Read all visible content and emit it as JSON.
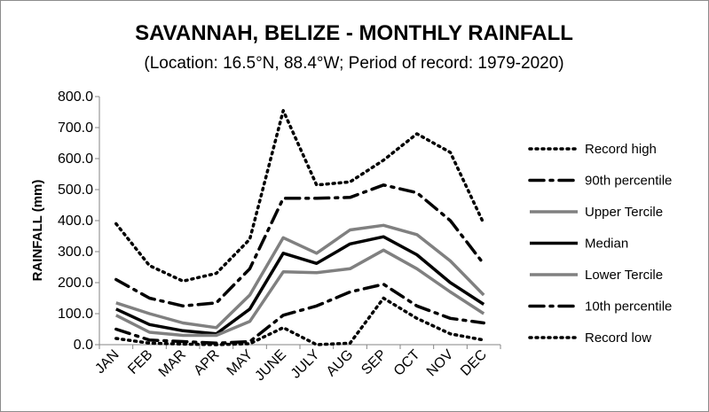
{
  "chart_data": {
    "type": "line",
    "title": "SAVANNAH, BELIZE - MONTHLY RAINFALL",
    "subtitle": "(Location: 16.5°N, 88.4°W; Period of record: 1979-2020)",
    "xlabel": "",
    "ylabel": "RAINFALL (mm)",
    "ylim": [
      0,
      800
    ],
    "yticks": [
      0,
      100,
      200,
      300,
      400,
      500,
      600,
      700,
      800
    ],
    "ytick_labels": [
      "0.0",
      "100.0",
      "200.0",
      "300.0",
      "400.0",
      "500.0",
      "600.0",
      "700.0",
      "800.0"
    ],
    "categories": [
      "JAN",
      "FEB",
      "MAR",
      "APR",
      "MAY",
      "JUNE",
      "JULY",
      "AUG",
      "SEP",
      "OCT",
      "NOV",
      "DEC"
    ],
    "grid": false,
    "legend_position": "right",
    "series": [
      {
        "name": "Record high",
        "style": "dotted",
        "color": "#000000",
        "values": [
          390,
          255,
          205,
          230,
          340,
          755,
          515,
          525,
          595,
          680,
          620,
          390
        ]
      },
      {
        "name": "90th percentile",
        "style": "dashdot",
        "color": "#000000",
        "values": [
          210,
          150,
          125,
          135,
          245,
          472,
          472,
          475,
          515,
          490,
          400,
          260
        ]
      },
      {
        "name": "Upper Tercile",
        "style": "solid",
        "color": "#808080",
        "values": [
          135,
          100,
          70,
          55,
          160,
          345,
          295,
          370,
          385,
          355,
          270,
          160
        ]
      },
      {
        "name": "Median",
        "style": "solid",
        "color": "#000000",
        "values": [
          115,
          65,
          45,
          35,
          115,
          295,
          262,
          325,
          348,
          290,
          200,
          130
        ]
      },
      {
        "name": "Lower Tercile",
        "style": "solid",
        "color": "#808080",
        "values": [
          95,
          40,
          30,
          30,
          75,
          235,
          232,
          245,
          305,
          245,
          170,
          100
        ]
      },
      {
        "name": "10th percentile",
        "style": "dashdot",
        "color": "#000000",
        "values": [
          50,
          15,
          10,
          5,
          10,
          95,
          125,
          170,
          195,
          125,
          85,
          70
        ]
      },
      {
        "name": "Record low",
        "style": "dotted",
        "color": "#000000",
        "values": [
          20,
          5,
          2,
          0,
          3,
          55,
          0,
          5,
          150,
          85,
          35,
          15
        ]
      }
    ]
  }
}
